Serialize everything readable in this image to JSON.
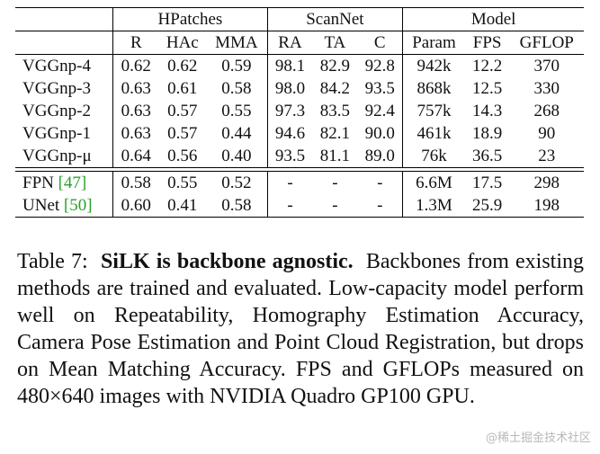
{
  "table": {
    "group_headers": [
      "HPatches",
      "ScanNet",
      "Model"
    ],
    "col_headers": [
      "R",
      "HAc",
      "MMA",
      "RA",
      "TA",
      "C",
      "Param",
      "FPS",
      "GFLOP"
    ],
    "rows": [
      {
        "name": "VGGnp-4",
        "ref": "",
        "cells": [
          "0.62",
          "0.62",
          "0.59",
          "98.1",
          "82.9",
          "92.8",
          "942k",
          "12.2",
          "370"
        ]
      },
      {
        "name": "VGGnp-3",
        "ref": "",
        "cells": [
          "0.63",
          "0.61",
          "0.58",
          "98.0",
          "84.2",
          "93.5",
          "868k",
          "12.5",
          "330"
        ]
      },
      {
        "name": "VGGnp-2",
        "ref": "",
        "cells": [
          "0.63",
          "0.57",
          "0.55",
          "97.3",
          "83.5",
          "92.4",
          "757k",
          "14.3",
          "268"
        ]
      },
      {
        "name": "VGGnp-1",
        "ref": "",
        "cells": [
          "0.63",
          "0.57",
          "0.44",
          "94.6",
          "82.1",
          "90.0",
          "461k",
          "18.9",
          "90"
        ]
      },
      {
        "name": "VGGnp-μ",
        "ref": "",
        "cells": [
          "0.64",
          "0.56",
          "0.40",
          "93.5",
          "81.1",
          "89.0",
          "76k",
          "36.5",
          "23"
        ]
      },
      {
        "name": "FPN ",
        "ref": "[47]",
        "cells": [
          "0.58",
          "0.55",
          "0.52",
          "-",
          "-",
          "-",
          "6.6M",
          "17.5",
          "298"
        ]
      },
      {
        "name": "UNet ",
        "ref": "[50]",
        "cells": [
          "0.60",
          "0.41",
          "0.58",
          "-",
          "-",
          "-",
          "1.3M",
          "25.9",
          "198"
        ]
      }
    ]
  },
  "caption": {
    "label": "Table 7:",
    "bold_title": "SiLK is backbone agnostic.",
    "text": "Backbones from existing methods are trained and evaluated. Low-capacity model perform well on Repeatability, Homography Estimation Accuracy, Camera Pose Estimation and Point Cloud Registration, but drops on Mean Matching Accuracy. FPS and GFLOPs measured on 480×640 images with NVIDIA Quadro GP100 GPU."
  },
  "watermark": "@稀土掘金技术社区"
}
